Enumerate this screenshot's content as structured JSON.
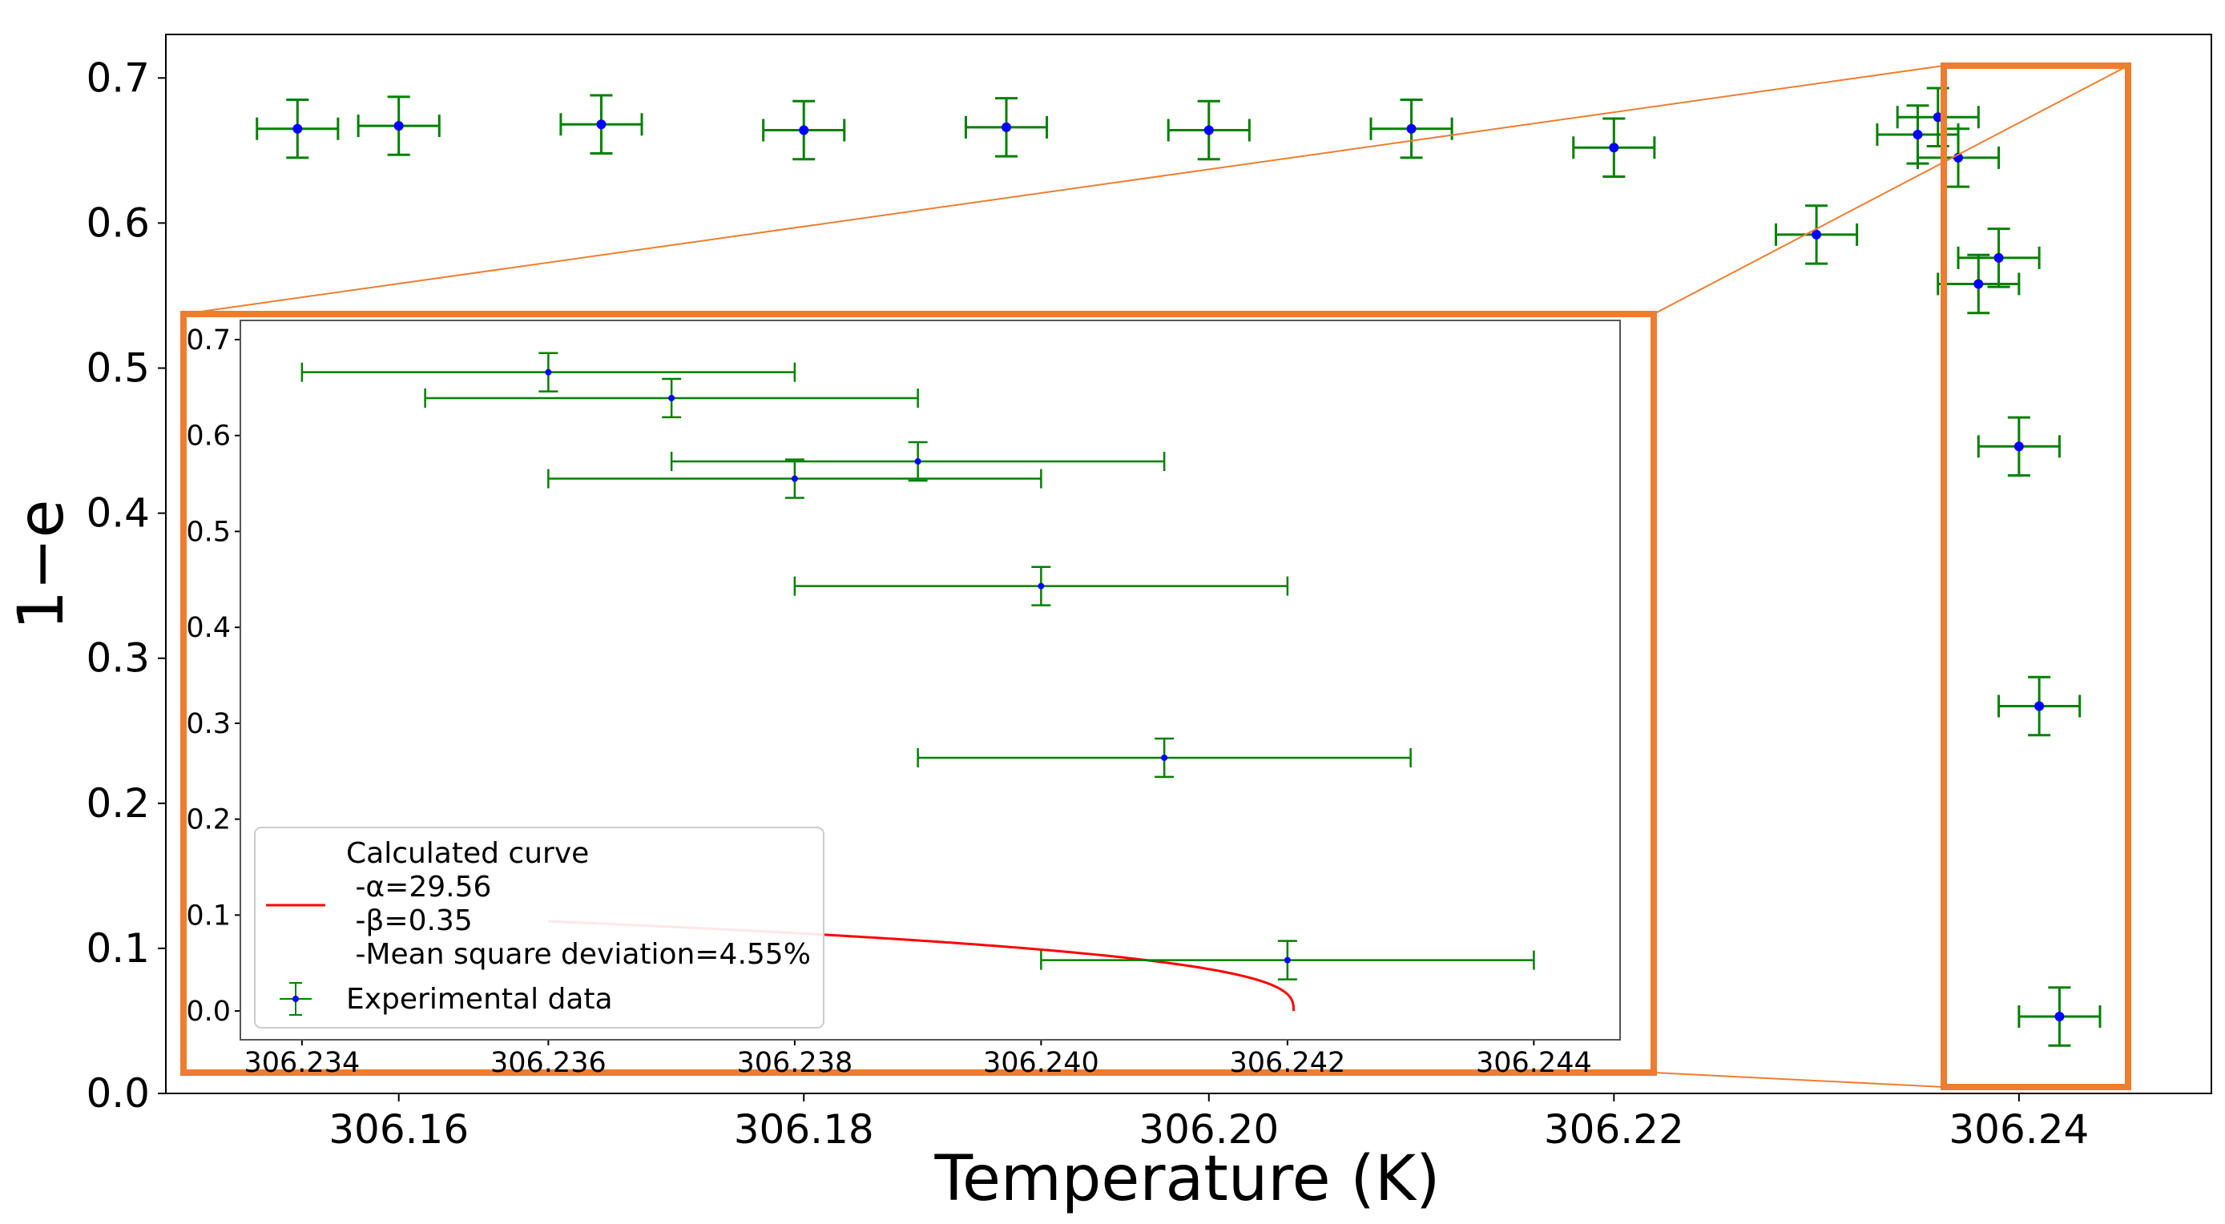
{
  "chart_data": [
    {
      "type": "scatter",
      "name": "main",
      "xlabel": "Temperature (K)",
      "ylabel": "1−e",
      "xlim": [
        306.1485,
        306.2495
      ],
      "ylim": [
        0.0,
        0.73
      ],
      "xticks": [
        306.16,
        306.18,
        306.2,
        306.22,
        306.24
      ],
      "xtick_labels": [
        "306.16",
        "306.18",
        "306.20",
        "306.22",
        "306.24"
      ],
      "yticks": [
        0.0,
        0.1,
        0.2,
        0.3,
        0.4,
        0.5,
        0.6,
        0.7
      ],
      "ytick_labels": [
        "0.0",
        "0.1",
        "0.2",
        "0.3",
        "0.4",
        "0.5",
        "0.6",
        "0.7"
      ],
      "xerr": 0.002,
      "yerr": 0.02,
      "marker_color": "#0000ff",
      "errorbar_color": "#008000",
      "series": [
        {
          "name": "Experimental data",
          "points": [
            [
              306.155,
              0.665
            ],
            [
              306.16,
              0.667
            ],
            [
              306.17,
              0.668
            ],
            [
              306.18,
              0.664
            ],
            [
              306.19,
              0.666
            ],
            [
              306.2,
              0.664
            ],
            [
              306.21,
              0.665
            ],
            [
              306.22,
              0.652
            ],
            [
              306.23,
              0.592
            ],
            [
              306.235,
              0.661
            ],
            [
              306.236,
              0.673
            ],
            [
              306.237,
              0.645
            ],
            [
              306.238,
              0.558
            ],
            [
              306.239,
              0.576
            ],
            [
              306.24,
              0.446
            ],
            [
              306.241,
              0.267
            ],
            [
              306.242,
              0.053
            ]
          ]
        }
      ]
    },
    {
      "type": "line",
      "name": "inset",
      "xlim": [
        306.2335,
        306.2447
      ],
      "ylim": [
        -0.03,
        0.72
      ],
      "xticks": [
        306.234,
        306.236,
        306.238,
        306.24,
        306.242,
        306.244
      ],
      "xtick_labels": [
        "306.234",
        "306.236",
        "306.238",
        "306.240",
        "306.242",
        "306.244"
      ],
      "yticks": [
        0.0,
        0.1,
        0.2,
        0.3,
        0.4,
        0.5,
        0.6,
        0.7
      ],
      "ytick_labels": [
        "0.0",
        "0.1",
        "0.2",
        "0.3",
        "0.4",
        "0.5",
        "0.6",
        "0.7"
      ],
      "xerr": 0.002,
      "yerr": 0.02,
      "curve": {
        "name": "Calculated curve",
        "color": "#ff0000",
        "Tc": 306.24205,
        "A": 0.5587,
        "beta": 0.35,
        "x_start": 306.236
      },
      "series": [
        {
          "name": "Experimental data",
          "points": [
            [
              306.236,
              0.666
            ],
            [
              306.237,
              0.639
            ],
            [
              306.238,
              0.555
            ],
            [
              306.239,
              0.573
            ],
            [
              306.24,
              0.443
            ],
            [
              306.241,
              0.264
            ],
            [
              306.242,
              0.053
            ]
          ]
        }
      ],
      "legend": {
        "location": "lower-left",
        "curve_lines": [
          "Calculated curve",
          " -α=29.56",
          " -β=0.35",
          " -Mean square deviation=4.55%"
        ],
        "data_label": "Experimental data"
      }
    }
  ],
  "zoom_box_color": "#ed7d31"
}
